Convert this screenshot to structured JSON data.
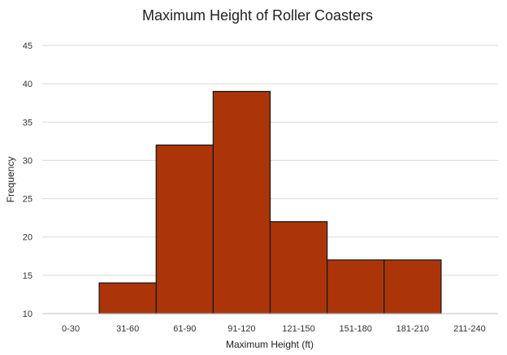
{
  "chart_data": {
    "type": "bar",
    "title": "Maximum Height of Roller Coasters",
    "xlabel": "Maximum Height (ft)",
    "ylabel": "Frequency",
    "categories": [
      "0-30",
      "31-60",
      "61-90",
      "91-120",
      "121-150",
      "151-180",
      "181-210",
      "211-240"
    ],
    "values": [
      10,
      14,
      32,
      39,
      22,
      17,
      17,
      10
    ],
    "ylim": [
      10,
      45
    ],
    "yticks": [
      "10",
      "15",
      "20",
      "25",
      "30",
      "35",
      "40",
      "45"
    ],
    "grid": true,
    "bar_color": "#ab3509",
    "bar_edge_color": "#1a1a1a"
  }
}
